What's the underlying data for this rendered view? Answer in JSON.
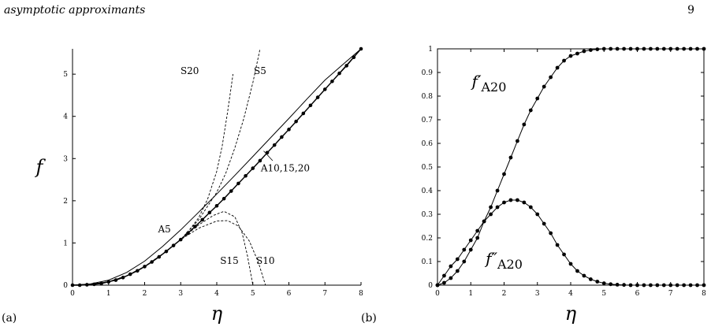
{
  "header": {
    "title": "asymptotic approximants",
    "page_number": "9"
  },
  "panels": {
    "a_letter": "(a)",
    "b_letter": "(b)"
  },
  "chart_data": [
    {
      "type": "line",
      "panel": "a",
      "xlabel": "η",
      "ylabel": "f",
      "xlim": [
        0,
        8
      ],
      "ylim": [
        0,
        5.6
      ],
      "xticks": [
        0,
        1,
        2,
        3,
        4,
        5,
        6,
        7,
        8
      ],
      "yticks": [
        0,
        1,
        2,
        3,
        4,
        5
      ],
      "grid": false,
      "numerical_markers": {
        "x": [
          0,
          0.2,
          0.4,
          0.6,
          0.8,
          1,
          1.2,
          1.4,
          1.6,
          1.8,
          2,
          2.2,
          2.4,
          2.6,
          2.8,
          3,
          3.2,
          3.4,
          3.6,
          3.8,
          4,
          4.2,
          4.4,
          4.6,
          4.8,
          5,
          5.2,
          5.4,
          5.6,
          5.8,
          6,
          6.2,
          6.4,
          6.6,
          6.8,
          7,
          7.2,
          7.4,
          7.6,
          7.8,
          8
        ],
        "y": [
          0,
          0,
          0.01,
          0.02,
          0.04,
          0.08,
          0.12,
          0.18,
          0.26,
          0.34,
          0.44,
          0.55,
          0.67,
          0.8,
          0.94,
          1.08,
          1.23,
          1.39,
          1.55,
          1.72,
          1.88,
          2.05,
          2.23,
          2.41,
          2.59,
          2.77,
          2.95,
          3.14,
          3.32,
          3.51,
          3.69,
          3.88,
          4.07,
          4.26,
          4.45,
          4.64,
          4.83,
          5.02,
          5.2,
          5.4,
          5.6
        ]
      },
      "series": [
        {
          "name": "A10,15,20",
          "style": "solid",
          "x": [
            0,
            0.5,
            1,
            1.5,
            2,
            2.5,
            3,
            3.5,
            4,
            4.5,
            5,
            5.5,
            6,
            6.5,
            7,
            7.5,
            8
          ],
          "y": [
            0,
            0.02,
            0.08,
            0.22,
            0.44,
            0.74,
            1.08,
            1.47,
            1.88,
            2.32,
            2.77,
            3.23,
            3.69,
            4.16,
            4.64,
            5.12,
            5.6
          ]
        },
        {
          "name": "A5",
          "style": "solid",
          "x": [
            0,
            0.5,
            1,
            1.5,
            2,
            2.5,
            3,
            3.5,
            4,
            4.5,
            5,
            5.5,
            6,
            6.5,
            7,
            7.5,
            8
          ],
          "y": [
            0,
            0.03,
            0.12,
            0.3,
            0.57,
            0.92,
            1.31,
            1.73,
            2.16,
            2.6,
            3.05,
            3.5,
            3.95,
            4.41,
            4.86,
            5.23,
            5.6
          ]
        },
        {
          "name": "S20",
          "style": "dashed",
          "x": [
            0,
            0.5,
            1,
            1.5,
            2,
            2.5,
            3,
            3.25,
            3.5,
            3.75,
            4,
            4.15,
            4.3,
            4.45
          ],
          "y": [
            0,
            0.02,
            0.08,
            0.22,
            0.44,
            0.74,
            1.08,
            1.32,
            1.6,
            2.05,
            2.7,
            3.3,
            4.1,
            5.0
          ]
        },
        {
          "name": "S5",
          "style": "dashed",
          "x": [
            0,
            0.5,
            1,
            1.5,
            2,
            2.5,
            3,
            3.5,
            4,
            4.25,
            4.5,
            4.75,
            5,
            5.2
          ],
          "y": [
            0,
            0.02,
            0.08,
            0.22,
            0.44,
            0.74,
            1.08,
            1.55,
            2.2,
            2.65,
            3.25,
            3.95,
            4.8,
            5.6
          ]
        },
        {
          "name": "S15",
          "style": "dashed",
          "x": [
            0,
            0.5,
            1,
            1.5,
            2,
            2.5,
            3,
            3.5,
            3.9,
            4.2,
            4.5,
            4.7,
            4.85,
            5.0
          ],
          "y": [
            0,
            0.02,
            0.08,
            0.22,
            0.44,
            0.74,
            1.08,
            1.43,
            1.65,
            1.75,
            1.62,
            1.25,
            0.7,
            0.0
          ]
        },
        {
          "name": "S10",
          "style": "dashed",
          "x": [
            0,
            0.5,
            1,
            1.5,
            2,
            2.5,
            3,
            3.5,
            4,
            4.3,
            4.6,
            4.9,
            5.15,
            5.35
          ],
          "y": [
            0,
            0.02,
            0.08,
            0.22,
            0.44,
            0.74,
            1.08,
            1.35,
            1.52,
            1.53,
            1.4,
            1.05,
            0.55,
            0.0
          ]
        }
      ],
      "annotations": [
        {
          "text": "S20",
          "x": 3.25,
          "y": 5.0
        },
        {
          "text": "S5",
          "x": 5.2,
          "y": 5.0
        },
        {
          "text": "A10,15,20",
          "x": 5.9,
          "y": 2.7
        },
        {
          "text": "A5",
          "x": 2.55,
          "y": 1.25
        },
        {
          "text": "S15",
          "x": 4.35,
          "y": 0.5
        },
        {
          "text": "S10",
          "x": 5.35,
          "y": 0.5
        }
      ]
    },
    {
      "type": "line",
      "panel": "b",
      "xlabel": "η",
      "xlim": [
        0,
        8
      ],
      "ylim": [
        0,
        1
      ],
      "xticks": [
        0,
        1,
        2,
        3,
        4,
        5,
        6,
        7,
        8
      ],
      "yticks": [
        0,
        0.1,
        0.2,
        0.3,
        0.4,
        0.5,
        0.6,
        0.7,
        0.8,
        0.9,
        1
      ],
      "grid": false,
      "series": [
        {
          "name": "f′A20",
          "x": [
            0,
            0.2,
            0.4,
            0.6,
            0.8,
            1,
            1.2,
            1.4,
            1.6,
            1.8,
            2,
            2.2,
            2.4,
            2.6,
            2.8,
            3,
            3.2,
            3.4,
            3.6,
            3.8,
            4,
            4.2,
            4.4,
            4.6,
            4.8,
            5,
            5.2,
            5.4,
            5.6,
            5.8,
            6,
            6.2,
            6.4,
            6.6,
            6.8,
            7,
            7.2,
            7.4,
            7.6,
            7.8,
            8
          ],
          "y": [
            0,
            0.01,
            0.03,
            0.06,
            0.1,
            0.15,
            0.2,
            0.27,
            0.33,
            0.4,
            0.47,
            0.54,
            0.61,
            0.68,
            0.74,
            0.79,
            0.84,
            0.88,
            0.92,
            0.95,
            0.97,
            0.98,
            0.99,
            0.995,
            0.998,
            1,
            1,
            1,
            1,
            1,
            1,
            1,
            1,
            1,
            1,
            1,
            1,
            1,
            1,
            1,
            1
          ]
        },
        {
          "name": "f″A20",
          "x": [
            0,
            0.2,
            0.4,
            0.6,
            0.8,
            1,
            1.2,
            1.4,
            1.6,
            1.8,
            2,
            2.2,
            2.4,
            2.6,
            2.8,
            3,
            3.2,
            3.4,
            3.6,
            3.8,
            4,
            4.2,
            4.4,
            4.6,
            4.8,
            5,
            5.2,
            5.4,
            5.6,
            5.8,
            6,
            6.2,
            6.4,
            6.6,
            6.8,
            7,
            7.2,
            7.4,
            7.6,
            7.8,
            8
          ],
          "y": [
            0,
            0.04,
            0.08,
            0.11,
            0.15,
            0.19,
            0.23,
            0.27,
            0.3,
            0.33,
            0.35,
            0.36,
            0.36,
            0.35,
            0.33,
            0.3,
            0.26,
            0.22,
            0.17,
            0.13,
            0.09,
            0.06,
            0.04,
            0.025,
            0.015,
            0.008,
            0.004,
            0.002,
            0.001,
            0,
            0,
            0,
            0,
            0,
            0,
            0,
            0,
            0,
            0,
            0,
            0
          ]
        }
      ],
      "annotations": [
        {
          "text": "f′A20",
          "x": 1.55,
          "y": 0.84
        },
        {
          "text": "f″A20",
          "x": 2.0,
          "y": 0.09
        }
      ]
    }
  ]
}
